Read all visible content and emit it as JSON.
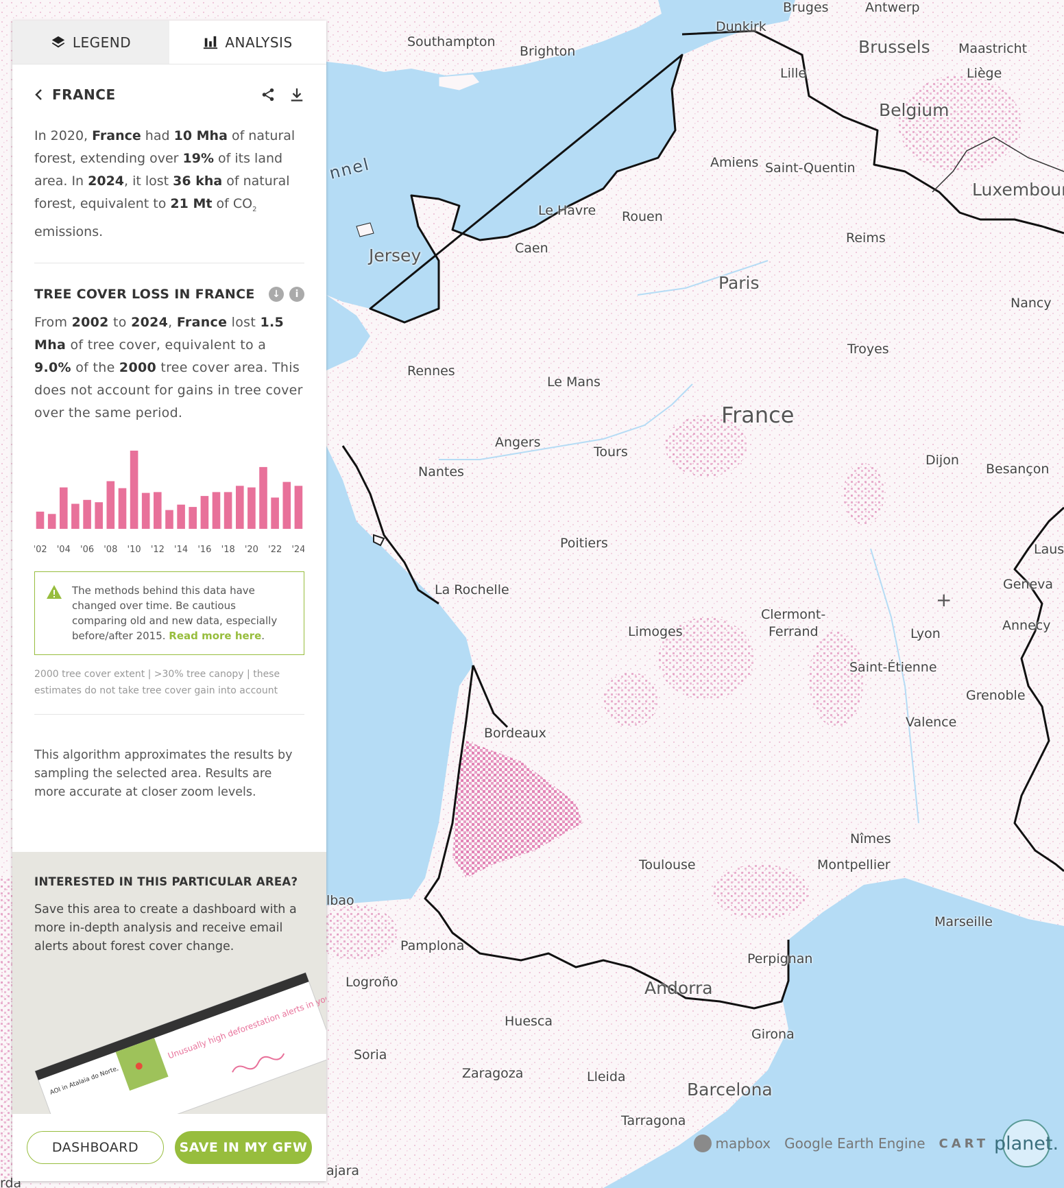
{
  "tabs": {
    "legend": "LEGEND",
    "analysis": "ANALYSIS"
  },
  "location": {
    "name": "FRANCE"
  },
  "summary": {
    "p1": "In 2020, ",
    "country": "France",
    "p2": " had ",
    "extent": "10 Mha",
    "p3": " of natural forest, extending over ",
    "pct": "19%",
    "p4": " of its land area. In ",
    "year": "2024",
    "p5": ", it lost ",
    "loss": "36 kha",
    "p6": " of natural forest, equivalent to ",
    "emissions": "21 Mt",
    "p7": " of CO",
    "sub": "2",
    "p8": " emissions."
  },
  "widget": {
    "title": "TREE COVER LOSS IN FRANCE",
    "t1": "From ",
    "start": "2002",
    "t2": " to ",
    "end": "2024",
    "t3": ", ",
    "country": "France",
    "t4": " lost ",
    "loss": "1.5 Mha",
    "t5": " of tree cover, equivalent to a ",
    "pct": "9.0%",
    "t6": " of the ",
    "base": "2000",
    "t7": " tree cover area. This does not account for gains in tree cover over the same period.",
    "warning_text": "The methods behind this data have changed over time. Be cautious comparing old and new data, especially before/after 2015. ",
    "warning_link": "Read more here",
    "warning_end": ".",
    "meta": "2000 tree cover extent | >30% tree canopy | these estimates do not take tree cover gain into account",
    "bar_color": "#e8719a"
  },
  "chart_data": {
    "type": "bar",
    "categories": [
      "2002",
      "2003",
      "2004",
      "2005",
      "2006",
      "2007",
      "2008",
      "2009",
      "2010",
      "2011",
      "2012",
      "2013",
      "2014",
      "2015",
      "2016",
      "2017",
      "2018",
      "2019",
      "2020",
      "2021",
      "2022",
      "2023",
      "2024"
    ],
    "tick_labels": [
      "'02",
      "'04",
      "'06",
      "'08",
      "'10",
      "'12",
      "'14",
      "'16",
      "'18",
      "'20",
      "'22",
      "'24"
    ],
    "values": [
      22,
      19,
      53,
      32,
      37,
      34,
      61,
      52,
      100,
      46,
      47,
      24,
      31,
      28,
      42,
      47,
      47,
      55,
      53,
      79,
      40,
      60,
      55
    ],
    "ylim": [
      0,
      100
    ]
  },
  "algorithm": "This algorithm approximates the results by sampling the selected area. Results are more accurate at closer zoom levels.",
  "interest": {
    "title": "INTERESTED IN THIS PARTICULAR AREA?",
    "text": "Save this area to create a dashboard with a more in-depth analysis and receive email alerts about forest cover change.",
    "promo_headline": "Unusually high deforestation alerts in your area of interest",
    "promo_small": "AOI in Atalaia do Norte,"
  },
  "buttons": {
    "dashboard": "DASHBOARD",
    "save": "SAVE IN MY GFW"
  },
  "map": {
    "labels": [
      {
        "text": "Bruges",
        "cls": ""
      },
      {
        "text": "Antwerp",
        "cls": ""
      },
      {
        "text": "Dunkirk",
        "cls": ""
      },
      {
        "text": "Southampton",
        "cls": ""
      },
      {
        "text": "Brighton",
        "cls": ""
      },
      {
        "text": "Brussels",
        "cls": "country"
      },
      {
        "text": "Maastricht",
        "cls": ""
      },
      {
        "text": "Lille",
        "cls": ""
      },
      {
        "text": "Liège",
        "cls": ""
      },
      {
        "text": "Belgium",
        "cls": "country"
      },
      {
        "text": "Luxembour",
        "cls": "country"
      },
      {
        "text": "Amiens",
        "cls": ""
      },
      {
        "text": "Saint-Quentin",
        "cls": ""
      },
      {
        "text": "nnel",
        "cls": "sea"
      },
      {
        "text": "Le Havre",
        "cls": ""
      },
      {
        "text": "Rouen",
        "cls": ""
      },
      {
        "text": "Jersey",
        "cls": "country"
      },
      {
        "text": "Caen",
        "cls": ""
      },
      {
        "text": "Reims",
        "cls": ""
      },
      {
        "text": "Paris",
        "cls": "country"
      },
      {
        "text": "Nancy",
        "cls": ""
      },
      {
        "text": "Troyes",
        "cls": ""
      },
      {
        "text": "Rennes",
        "cls": ""
      },
      {
        "text": "Le Mans",
        "cls": ""
      },
      {
        "text": "France",
        "cls": "big"
      },
      {
        "text": "Angers",
        "cls": ""
      },
      {
        "text": "Tours",
        "cls": ""
      },
      {
        "text": "Nantes",
        "cls": ""
      },
      {
        "text": "Dijon",
        "cls": ""
      },
      {
        "text": "Besançon",
        "cls": ""
      },
      {
        "text": "Poitiers",
        "cls": ""
      },
      {
        "text": "Laus",
        "cls": ""
      },
      {
        "text": "La Rochelle",
        "cls": ""
      },
      {
        "text": "Geneva",
        "cls": ""
      },
      {
        "text": "Limoges",
        "cls": ""
      },
      {
        "text": "Clermont-",
        "cls": ""
      },
      {
        "text": "Ferrand",
        "cls": ""
      },
      {
        "text": "Lyon",
        "cls": ""
      },
      {
        "text": "Annecy",
        "cls": ""
      },
      {
        "text": "Saint-Étienne",
        "cls": ""
      },
      {
        "text": "Grenoble",
        "cls": ""
      },
      {
        "text": "Bordeaux",
        "cls": ""
      },
      {
        "text": "Valence",
        "cls": ""
      },
      {
        "text": "Nîmes",
        "cls": ""
      },
      {
        "text": "Toulouse",
        "cls": ""
      },
      {
        "text": "Montpellier",
        "cls": ""
      },
      {
        "text": "lbao",
        "cls": ""
      },
      {
        "text": "Marseille",
        "cls": ""
      },
      {
        "text": "Pamplona",
        "cls": ""
      },
      {
        "text": "Perpignan",
        "cls": ""
      },
      {
        "text": "Logroño",
        "cls": ""
      },
      {
        "text": "Andorra",
        "cls": "country"
      },
      {
        "text": "Huesca",
        "cls": ""
      },
      {
        "text": "Girona",
        "cls": ""
      },
      {
        "text": "Soria",
        "cls": ""
      },
      {
        "text": "Zaragoza",
        "cls": ""
      },
      {
        "text": "Lleida",
        "cls": ""
      },
      {
        "text": "Barcelona",
        "cls": "country"
      },
      {
        "text": "Tarragona",
        "cls": ""
      },
      {
        "text": "ajara",
        "cls": ""
      },
      {
        "text": "rda",
        "cls": ""
      }
    ],
    "attribution": {
      "mapbox": "mapbox",
      "google": "Google Earth Engine",
      "carto": "CART",
      "planet": "planet."
    }
  }
}
